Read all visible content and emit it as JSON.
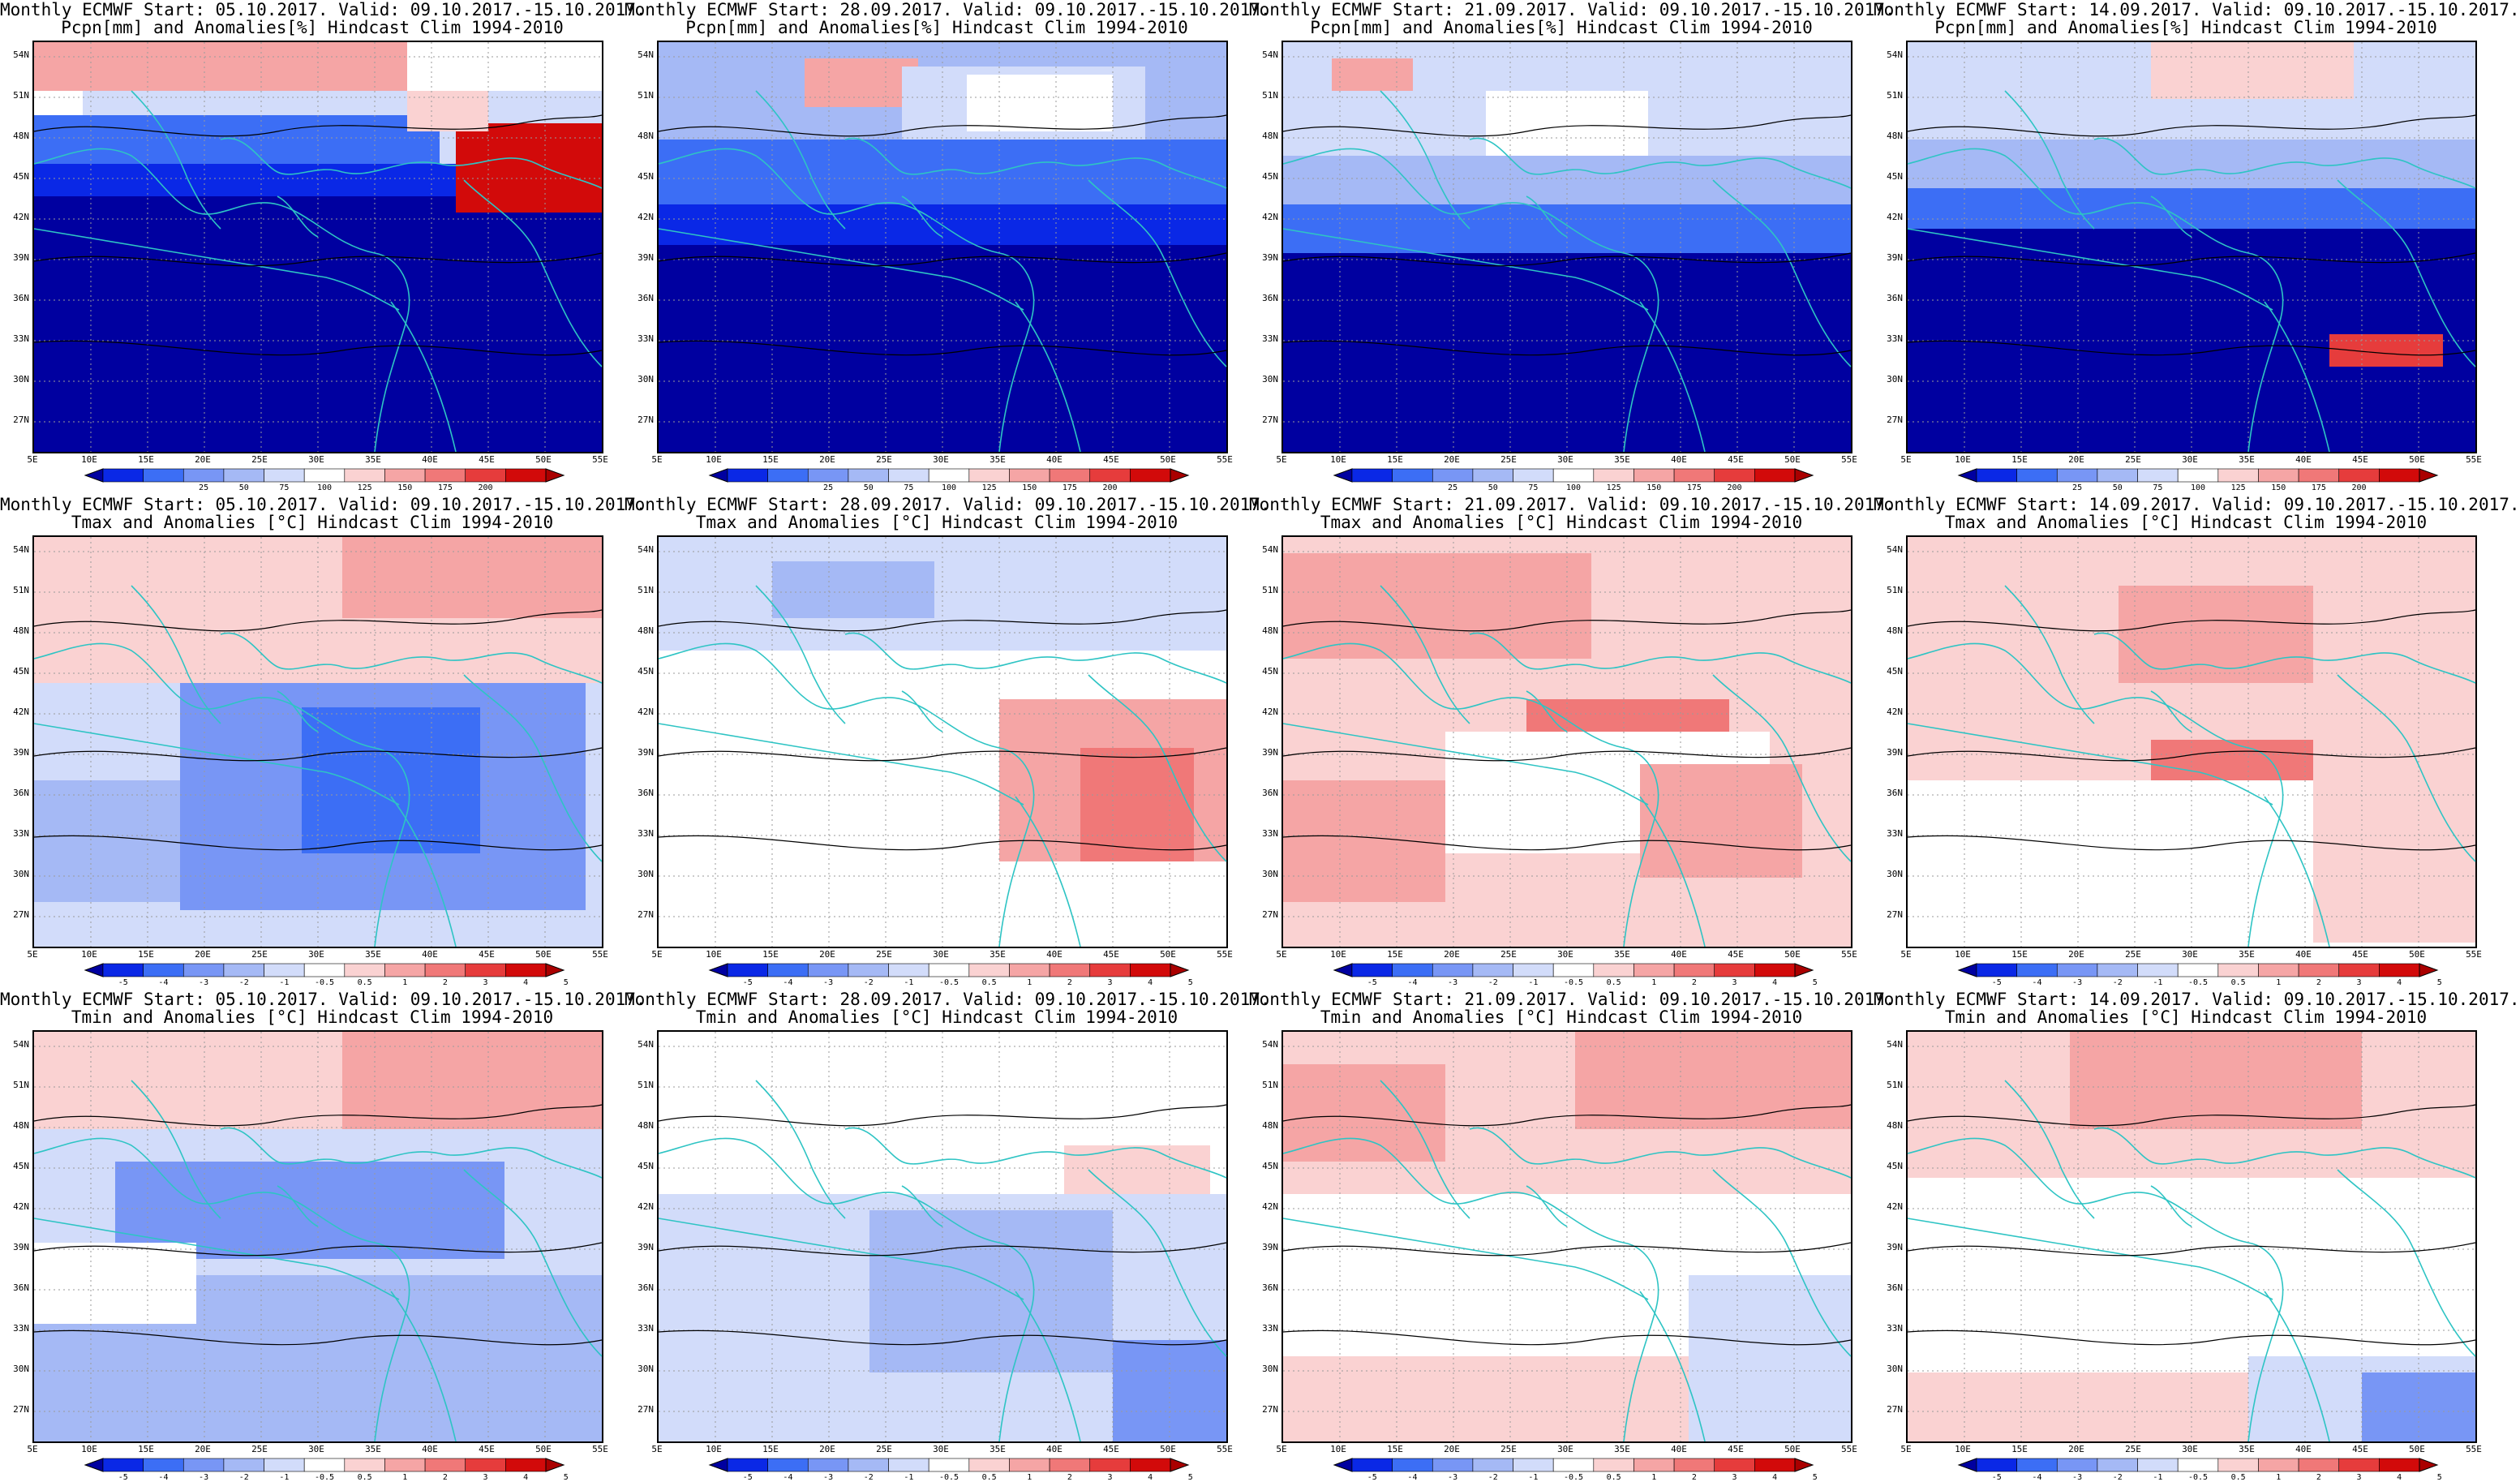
{
  "figure": {
    "rows": [
      {
        "variable_line": "Pcpn[mm] and Anomalies[%] Hindcast Clim 1994-2010",
        "legend_key": "precip",
        "panels": [
          {
            "title": "Monthly ECMWF Start: 05.10.2017. Valid: 09.10.2017.-15.10.2017.",
            "pattern": "pr1"
          },
          {
            "title": "Monthly ECMWF Start: 28.09.2017. Valid: 09.10.2017.-15.10.2017.",
            "pattern": "pr2"
          },
          {
            "title": "Monthly ECMWF Start: 21.09.2017. Valid: 09.10.2017.-15.10.2017.",
            "pattern": "pr3"
          },
          {
            "title": "Monthly ECMWF Start: 14.09.2017. Valid: 09.10.2017.-15.10.2017.",
            "pattern": "pr4"
          }
        ]
      },
      {
        "variable_line": "Tmax and Anomalies [°C] Hindcast Clim 1994-2010",
        "legend_key": "temp",
        "panels": [
          {
            "title": "Monthly ECMWF Start: 05.10.2017. Valid: 09.10.2017.-15.10.2017.",
            "pattern": "tx1"
          },
          {
            "title": "Monthly ECMWF Start: 28.09.2017. Valid: 09.10.2017.-15.10.2017.",
            "pattern": "tx2"
          },
          {
            "title": "Monthly ECMWF Start: 21.09.2017. Valid: 09.10.2017.-15.10.2017.",
            "pattern": "tx3"
          },
          {
            "title": "Monthly ECMWF Start: 14.09.2017. Valid: 09.10.2017.-15.10.2017.",
            "pattern": "tx4"
          }
        ]
      },
      {
        "variable_line": "Tmin and Anomalies [°C] Hindcast Clim 1994-2010",
        "legend_key": "temp",
        "panels": [
          {
            "title": "Monthly ECMWF Start: 05.10.2017. Valid: 09.10.2017.-15.10.2017.",
            "pattern": "tn1"
          },
          {
            "title": "Monthly ECMWF Start: 28.09.2017. Valid: 09.10.2017.-15.10.2017.",
            "pattern": "tn2"
          },
          {
            "title": "Monthly ECMWF Start: 21.09.2017. Valid: 09.10.2017.-15.10.2017.",
            "pattern": "tn3"
          },
          {
            "title": "Monthly ECMWF Start: 14.09.2017. Valid: 09.10.2017.-15.10.2017.",
            "pattern": "tn4"
          }
        ]
      }
    ],
    "lat_labels": [
      "54N",
      "51N",
      "48N",
      "45N",
      "42N",
      "39N",
      "36N",
      "33N",
      "30N",
      "27N"
    ],
    "lon_labels": [
      "5E",
      "10E",
      "15E",
      "20E",
      "25E",
      "30E",
      "35E",
      "40E",
      "45E",
      "50E",
      "55E"
    ],
    "legends": {
      "precip": {
        "ticks": [
          "25",
          "50",
          "75",
          "100",
          "125",
          "150",
          "175",
          "200"
        ],
        "colors": [
          "#0000a0",
          "#0a28e6",
          "#3c6ef5",
          "#7896f5",
          "#a5b9f5",
          "#d2dcfa",
          "#ffffff",
          "#fad2d2",
          "#f5a5a5",
          "#f07878",
          "#e63c3c",
          "#d20a0a",
          "#aa0000"
        ]
      },
      "temp": {
        "ticks": [
          "-5",
          "-4",
          "-3",
          "-2",
          "-1",
          "-0.5",
          "0.5",
          "1",
          "2",
          "3",
          "4",
          "5"
        ],
        "colors": [
          "#0000a0",
          "#0a28e6",
          "#3c6ef5",
          "#7896f5",
          "#a5b9f5",
          "#d2dcfa",
          "#ffffff",
          "#fad2d2",
          "#f5a5a5",
          "#f07878",
          "#e63c3c",
          "#d20a0a",
          "#aa0000"
        ]
      }
    },
    "colors": {
      "coast": "#2ec4c4",
      "contour": "#000000",
      "grid": "#9a9a9a"
    }
  }
}
